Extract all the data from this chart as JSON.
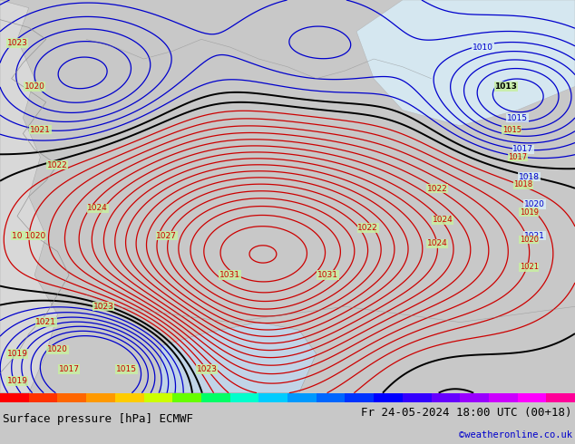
{
  "title_left": "Surface pressure [hPa] ECMWF",
  "title_right": "Fr 24-05-2024 18:00 UTC (00+18)",
  "title_right2": "©weatheronline.co.uk",
  "bg_color": "#c8c8c8",
  "map_bg_green": "#c8f0a0",
  "text_color_black": "#000000",
  "text_color_blue": "#0000cc",
  "contour_red": "#cc0000",
  "contour_blue": "#0000cc",
  "contour_black": "#000000",
  "figsize": [
    6.34,
    4.9
  ],
  "dpi": 100,
  "labels_red": [
    [
      3,
      89,
      "1023"
    ],
    [
      6,
      78,
      "1020"
    ],
    [
      7,
      67,
      "1021"
    ],
    [
      10,
      58,
      "1022"
    ],
    [
      17,
      47,
      "1024"
    ],
    [
      29,
      40,
      "1027"
    ],
    [
      40,
      30,
      "1031"
    ],
    [
      57,
      30,
      "1031"
    ],
    [
      64,
      42,
      "1022"
    ],
    [
      76,
      38,
      "1024"
    ],
    [
      5,
      40,
      "10 1020"
    ],
    [
      18,
      22,
      "1023"
    ],
    [
      8,
      18,
      "1021"
    ],
    [
      10,
      11,
      "1020"
    ],
    [
      3,
      10,
      "1019"
    ],
    [
      12,
      6,
      "1017"
    ],
    [
      22,
      6,
      "1015"
    ],
    [
      36,
      6,
      "1023"
    ],
    [
      3,
      3,
      "1019"
    ]
  ],
  "labels_black": [
    [
      88,
      78,
      "1013"
    ]
  ],
  "labels_blue": [
    [
      84,
      88,
      "1010"
    ],
    [
      90,
      70,
      "1015"
    ],
    [
      91,
      62,
      "1017"
    ],
    [
      92,
      55,
      "1018"
    ],
    [
      93,
      48,
      "1020"
    ],
    [
      93,
      40,
      "1021"
    ]
  ],
  "labels_red2": [
    [
      76,
      52,
      "1022"
    ],
    [
      77,
      44,
      "1024"
    ],
    [
      87,
      163,
      "1015"
    ],
    [
      88,
      155,
      "1017"
    ],
    [
      89,
      148,
      "1018"
    ],
    [
      90,
      141,
      "1020"
    ],
    [
      91,
      134,
      "1021"
    ]
  ]
}
